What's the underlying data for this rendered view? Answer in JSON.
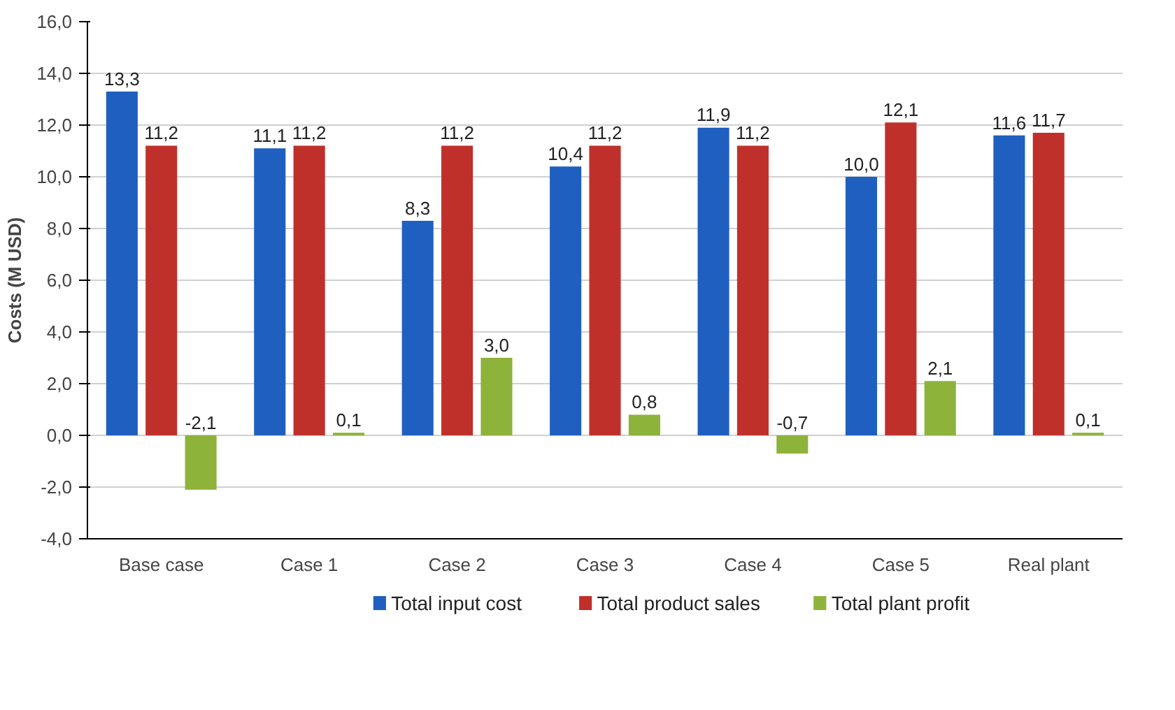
{
  "chart_data": {
    "type": "bar",
    "ylabel": "Costs (M USD)",
    "categories": [
      "Base case",
      "Case 1",
      "Case 2",
      "Case 3",
      "Case 4",
      "Case 5",
      "Real plant"
    ],
    "series": [
      {
        "name": "Total input cost",
        "color": "#1f5fbf",
        "values": [
          13.3,
          11.1,
          8.3,
          10.4,
          11.9,
          10.0,
          11.6
        ],
        "value_labels": [
          "13,3",
          "11,1",
          "8,3",
          "10,4",
          "11,9",
          "10,0",
          "11,6"
        ]
      },
      {
        "name": "Total product sales",
        "color": "#c0302b",
        "values": [
          11.2,
          11.2,
          11.2,
          11.2,
          11.2,
          12.1,
          11.7
        ],
        "value_labels": [
          "11,2",
          "11,2",
          "11,2",
          "11,2",
          "11,2",
          "12,1",
          "11,7"
        ]
      },
      {
        "name": "Total plant profit",
        "color": "#8db33a",
        "values": [
          -2.1,
          0.1,
          3.0,
          0.8,
          -0.7,
          2.1,
          0.1
        ],
        "value_labels": [
          "-2,1",
          "0,1",
          "3,0",
          "0,8",
          "-0,7",
          "2,1",
          "0,1"
        ]
      }
    ],
    "ylim": [
      -4,
      16
    ],
    "yticks": [
      {
        "value": -4,
        "label": "-4,0"
      },
      {
        "value": -2,
        "label": "-2,0"
      },
      {
        "value": 0,
        "label": "0,0"
      },
      {
        "value": 2,
        "label": "2,0"
      },
      {
        "value": 4,
        "label": "4,0"
      },
      {
        "value": 6,
        "label": "6,0"
      },
      {
        "value": 8,
        "label": "8,0"
      },
      {
        "value": 10,
        "label": "10,0"
      },
      {
        "value": 12,
        "label": "12,0"
      },
      {
        "value": 14,
        "label": "14,0"
      },
      {
        "value": 16,
        "label": "16,0"
      }
    ],
    "grid": "y",
    "legend": "bottom"
  }
}
